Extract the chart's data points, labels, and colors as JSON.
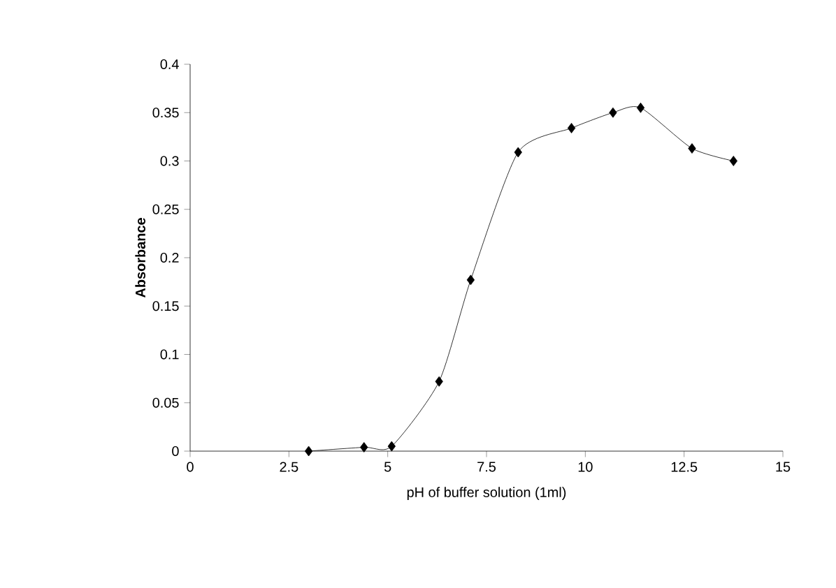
{
  "chart_data": {
    "type": "line",
    "xlabel": "pH of buffer solution (1ml)",
    "ylabel": "Absorbance",
    "x": [
      3.0,
      4.4,
      5.1,
      6.3,
      7.1,
      8.3,
      9.65,
      10.7,
      11.4,
      12.7,
      13.75
    ],
    "series": [
      {
        "color": "#000000",
        "values": [
          0,
          0.004,
          0.005,
          0.072,
          0.177,
          0.309,
          0.334,
          0.35,
          0.355,
          0.313,
          0.3
        ]
      }
    ],
    "xlim": [
      0,
      15
    ],
    "xticks": [
      0,
      2.5,
      5,
      7.5,
      10,
      12.5,
      15
    ],
    "ylim": [
      0,
      0.4
    ],
    "yticks": [
      0,
      0.05,
      0.1,
      0.15,
      0.2,
      0.25,
      0.3,
      0.35,
      0.4
    ],
    "marker": "diamond",
    "line_style": "solid"
  }
}
